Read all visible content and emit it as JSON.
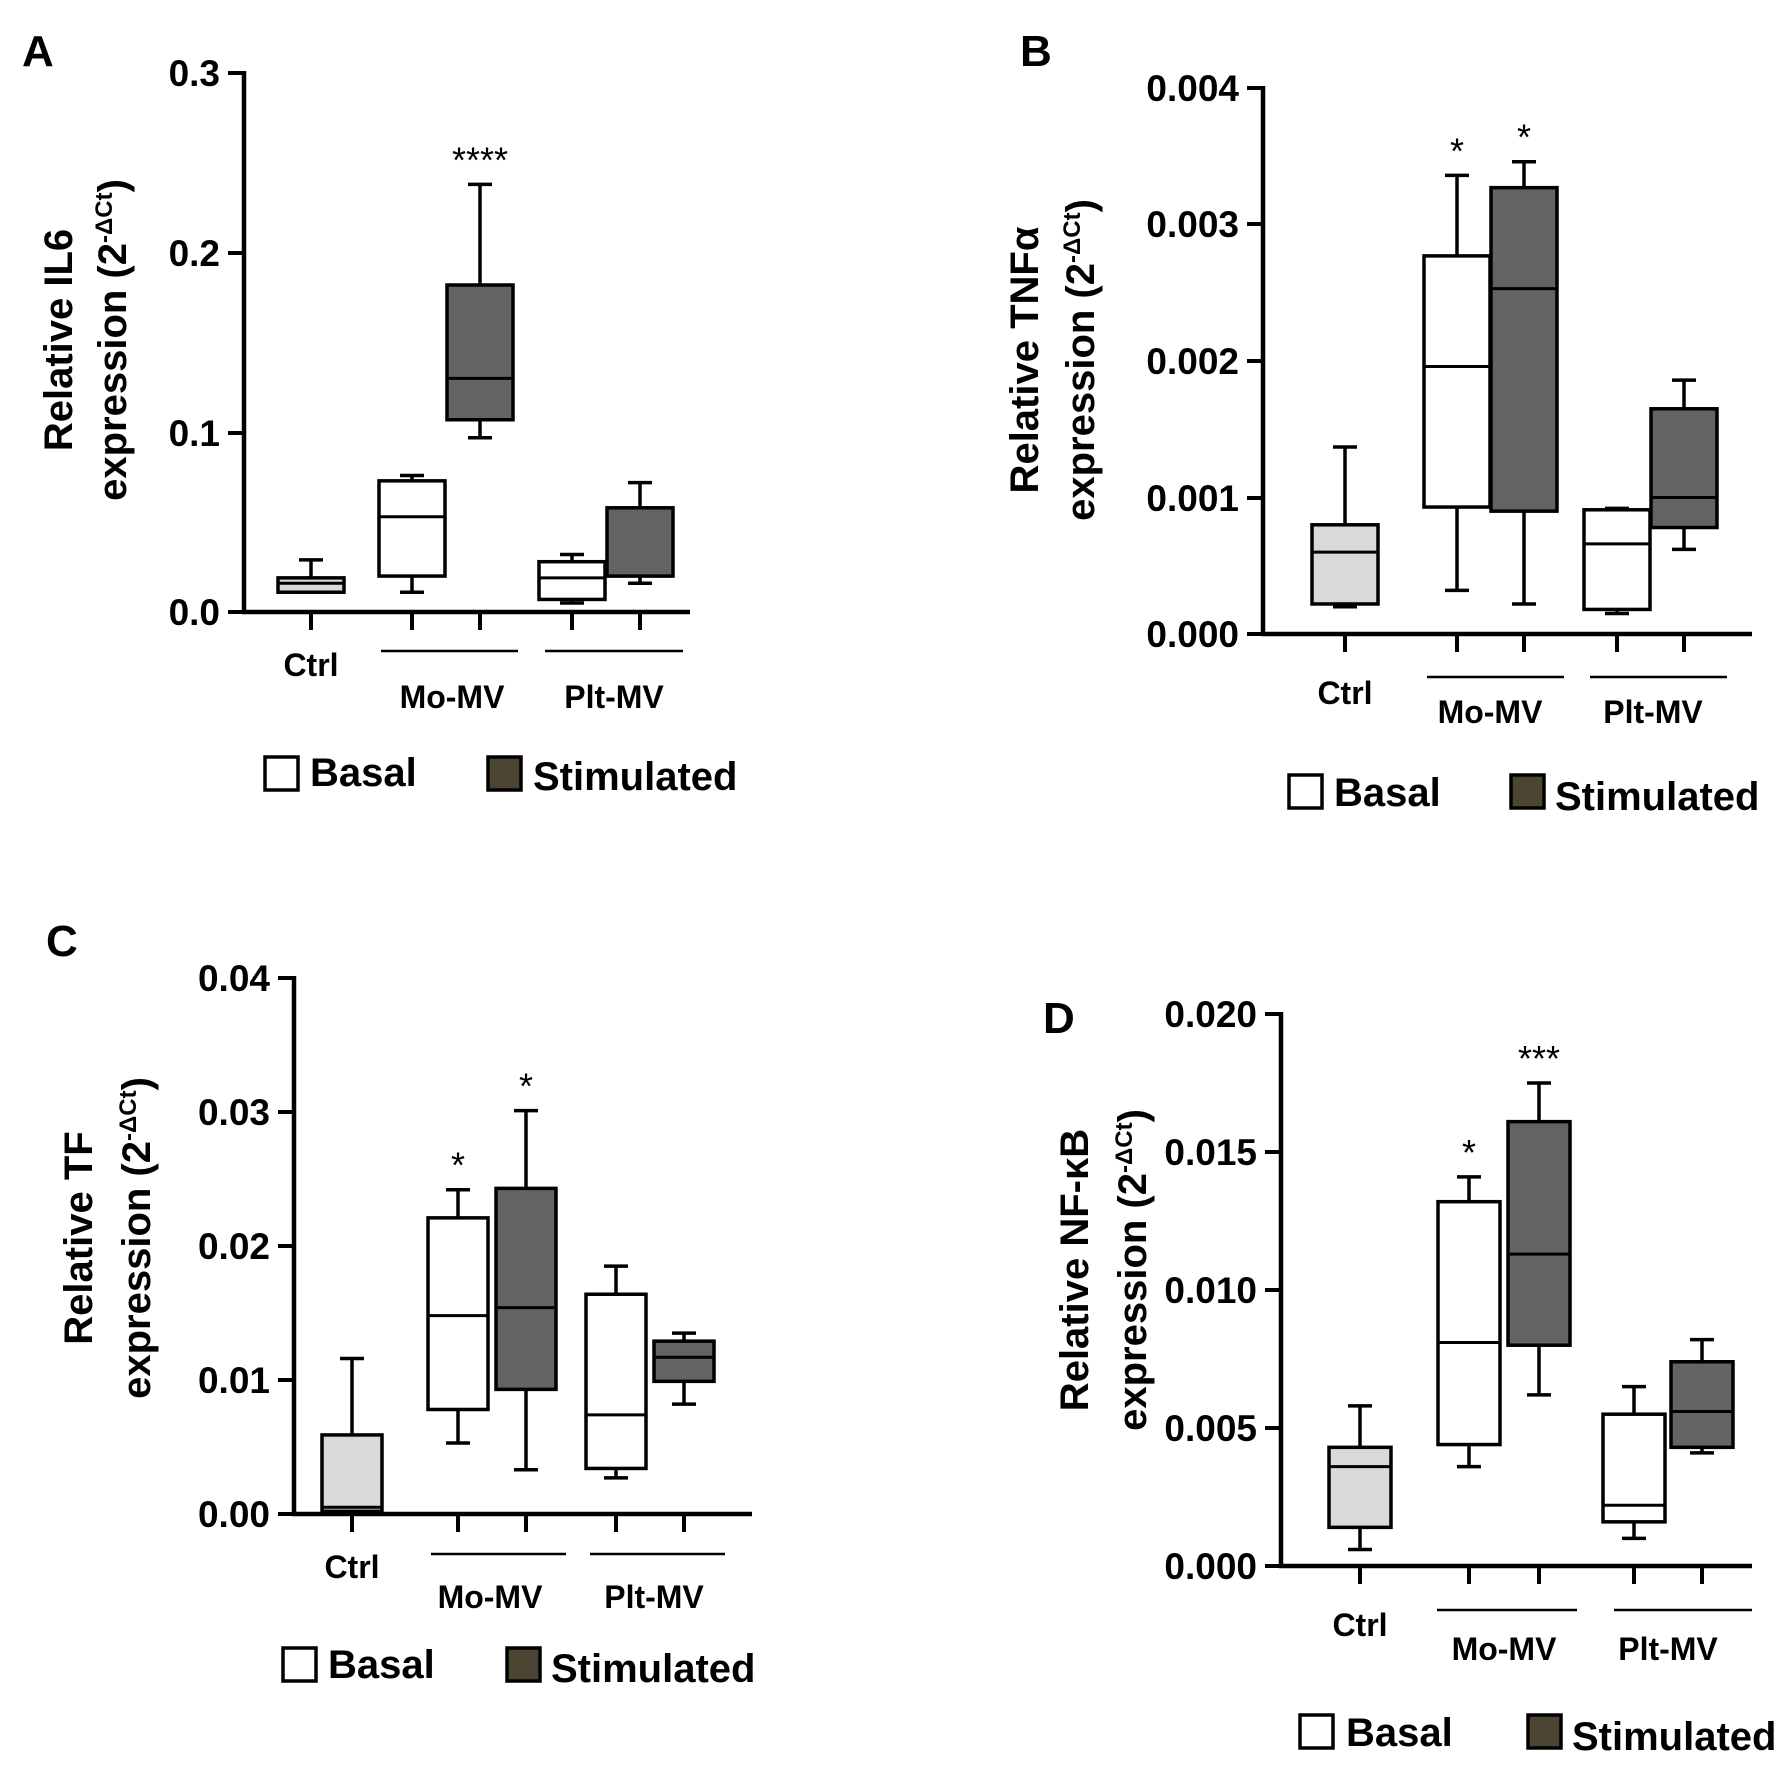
{
  "chart_data": [
    {
      "type": "box",
      "panel_label": "A",
      "ylabel_line1_prefix": "Relative ",
      "ylabel_gene": "IL6",
      "ylabel_line2_prefix": "expression (2",
      "ylabel_superscript": "-ΔCt",
      "ylabel_line2_suffix": ")",
      "ylim": [
        0,
        0.3
      ],
      "yticks": [
        "0.0",
        "0.1",
        "0.2",
        "0.3"
      ],
      "groups": [
        "Ctrl",
        "Mo-MV",
        "Plt-MV"
      ],
      "legend": [
        "Basal",
        "Stimulated"
      ],
      "boxes": [
        {
          "group": "Ctrl",
          "condition": "control",
          "min": 0.011,
          "q1": 0.011,
          "median": 0.016,
          "q3": 0.019,
          "max": 0.029,
          "significance": ""
        },
        {
          "group": "Mo-MV",
          "condition": "Basal",
          "min": 0.011,
          "q1": 0.02,
          "median": 0.053,
          "q3": 0.073,
          "max": 0.076,
          "significance": ""
        },
        {
          "group": "Mo-MV",
          "condition": "Stimulated",
          "min": 0.097,
          "q1": 0.107,
          "median": 0.13,
          "q3": 0.182,
          "max": 0.238,
          "significance": "****"
        },
        {
          "group": "Plt-MV",
          "condition": "Basal",
          "min": 0.005,
          "q1": 0.007,
          "median": 0.019,
          "q3": 0.028,
          "max": 0.032,
          "significance": ""
        },
        {
          "group": "Plt-MV",
          "condition": "Stimulated",
          "min": 0.016,
          "q1": 0.02,
          "median": 0.02,
          "q3": 0.058,
          "max": 0.072,
          "significance": ""
        }
      ]
    },
    {
      "type": "box",
      "panel_label": "B",
      "ylabel_line1_prefix": "Relative ",
      "ylabel_gene": "TNFα",
      "ylabel_line2_prefix": "expression (2",
      "ylabel_superscript": "-ΔCt",
      "ylabel_line2_suffix": ")",
      "ylim": [
        0,
        0.004
      ],
      "yticks": [
        "0.000",
        "0.001",
        "0.002",
        "0.003",
        "0.004"
      ],
      "groups": [
        "Ctrl",
        "Mo-MV",
        "Plt-MV"
      ],
      "legend": [
        "Basal",
        "Stimulated"
      ],
      "boxes": [
        {
          "group": "Ctrl",
          "condition": "control",
          "min": 0.0002,
          "q1": 0.00022,
          "median": 0.0006,
          "q3": 0.0008,
          "max": 0.00137,
          "significance": ""
        },
        {
          "group": "Mo-MV",
          "condition": "Basal",
          "min": 0.00032,
          "q1": 0.00093,
          "median": 0.00196,
          "q3": 0.00277,
          "max": 0.00336,
          "significance": "*"
        },
        {
          "group": "Mo-MV",
          "condition": "Stimulated",
          "min": 0.00022,
          "q1": 0.0009,
          "median": 0.00253,
          "q3": 0.00327,
          "max": 0.00346,
          "significance": "*"
        },
        {
          "group": "Plt-MV",
          "condition": "Basal",
          "min": 0.00015,
          "q1": 0.00018,
          "median": 0.00066,
          "q3": 0.00091,
          "max": 0.00092,
          "significance": ""
        },
        {
          "group": "Plt-MV",
          "condition": "Stimulated",
          "min": 0.00062,
          "q1": 0.00078,
          "median": 0.001,
          "q3": 0.00165,
          "max": 0.00186,
          "significance": ""
        }
      ]
    },
    {
      "type": "box",
      "panel_label": "C",
      "ylabel_line1_prefix": "Relative ",
      "ylabel_gene": "TF",
      "ylabel_line2_prefix": "expression (2",
      "ylabel_superscript": "-ΔCt",
      "ylabel_line2_suffix": ")",
      "ylim": [
        0,
        0.04
      ],
      "yticks": [
        "0.00",
        "0.01",
        "0.02",
        "0.03",
        "0.04"
      ],
      "groups": [
        "Ctrl",
        "Mo-MV",
        "Plt-MV"
      ],
      "legend": [
        "Basal",
        "Stimulated"
      ],
      "boxes": [
        {
          "group": "Ctrl",
          "condition": "control",
          "min": 0.0,
          "q1": 0.0002,
          "median": 0.0005,
          "q3": 0.0059,
          "max": 0.0116,
          "significance": ""
        },
        {
          "group": "Mo-MV",
          "condition": "Basal",
          "min": 0.0053,
          "q1": 0.0078,
          "median": 0.0148,
          "q3": 0.0221,
          "max": 0.0242,
          "significance": "*"
        },
        {
          "group": "Mo-MV",
          "condition": "Stimulated",
          "min": 0.0033,
          "q1": 0.0093,
          "median": 0.0154,
          "q3": 0.0243,
          "max": 0.0301,
          "significance": "*"
        },
        {
          "group": "Plt-MV",
          "condition": "Basal",
          "min": 0.0027,
          "q1": 0.0034,
          "median": 0.0074,
          "q3": 0.0164,
          "max": 0.0185,
          "significance": ""
        },
        {
          "group": "Plt-MV",
          "condition": "Stimulated",
          "min": 0.0082,
          "q1": 0.0099,
          "median": 0.0117,
          "q3": 0.0129,
          "max": 0.0135,
          "significance": ""
        }
      ]
    },
    {
      "type": "box",
      "panel_label": "D",
      "ylabel_line1_prefix": "Relative ",
      "ylabel_gene": "NF-κB",
      "ylabel_line2_prefix": "expression (2",
      "ylabel_superscript": "-ΔCt",
      "ylabel_line2_suffix": ")",
      "ylim": [
        0,
        0.02
      ],
      "yticks": [
        "0.000",
        "0.005",
        "0.010",
        "0.015",
        "0.020"
      ],
      "groups": [
        "Ctrl",
        "Mo-MV",
        "Plt-MV"
      ],
      "legend": [
        "Basal",
        "Stimulated"
      ],
      "boxes": [
        {
          "group": "Ctrl",
          "condition": "control",
          "min": 0.0006,
          "q1": 0.0014,
          "median": 0.0036,
          "q3": 0.0043,
          "max": 0.0058,
          "significance": ""
        },
        {
          "group": "Mo-MV",
          "condition": "Basal",
          "min": 0.0036,
          "q1": 0.0044,
          "median": 0.0081,
          "q3": 0.0132,
          "max": 0.0141,
          "significance": "*"
        },
        {
          "group": "Mo-MV",
          "condition": "Stimulated",
          "min": 0.0062,
          "q1": 0.008,
          "median": 0.0113,
          "q3": 0.0161,
          "max": 0.0175,
          "significance": "***"
        },
        {
          "group": "Plt-MV",
          "condition": "Basal",
          "min": 0.001,
          "q1": 0.0016,
          "median": 0.0022,
          "q3": 0.0055,
          "max": 0.0065,
          "significance": ""
        },
        {
          "group": "Plt-MV",
          "condition": "Stimulated",
          "min": 0.0041,
          "q1": 0.0043,
          "median": 0.0056,
          "q3": 0.0074,
          "max": 0.0082,
          "significance": ""
        }
      ]
    }
  ],
  "colors": {
    "control_fill": "#d9d9d9",
    "basal_fill": "#ffffff",
    "stimulated_fill": "#636363",
    "legend_stimulated_fill": "#4d4533",
    "stroke": "#000000"
  }
}
